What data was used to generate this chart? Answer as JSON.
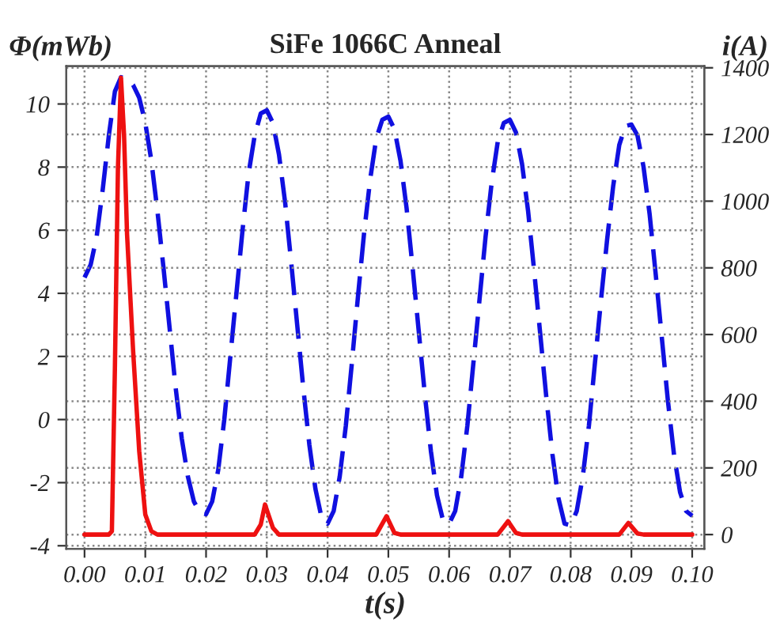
{
  "chart_data": {
    "type": "line",
    "title": "SiFe 1066C Anneal",
    "xlabel": "t(s)",
    "ylabel": "Φ(mWb)",
    "y2label": "i(A)",
    "xlim": [
      -0.003,
      0.102
    ],
    "xticks": [
      {
        "value": 0,
        "label": "0.00"
      },
      {
        "value": 0.01,
        "label": "0.01"
      },
      {
        "value": 0.02,
        "label": "0.02"
      },
      {
        "value": 0.03,
        "label": "0.03"
      },
      {
        "value": 0.04,
        "label": "0.04"
      },
      {
        "value": 0.05,
        "label": "0.05"
      },
      {
        "value": 0.06,
        "label": "0.06"
      },
      {
        "value": 0.07,
        "label": "0.07"
      },
      {
        "value": 0.08,
        "label": "0.08"
      },
      {
        "value": 0.09,
        "label": "0.09"
      },
      {
        "value": 0.1,
        "label": "0.10"
      }
    ],
    "ylim": [
      -4.1,
      11.2
    ],
    "yticks": [
      -4,
      -2,
      0,
      2,
      4,
      6,
      8,
      10
    ],
    "y2lim": [
      -43,
      1405
    ],
    "y2ticks": [
      0,
      200,
      400,
      600,
      800,
      1000,
      1200,
      1400
    ],
    "grid": true,
    "legend": false,
    "series": [
      {
        "color": "#1010e0",
        "line_style": "dashed",
        "x": [
          0.0,
          0.001,
          0.002,
          0.003,
          0.004,
          0.005,
          0.006,
          0.007,
          0.008,
          0.009,
          0.01,
          0.011,
          0.012,
          0.013,
          0.014,
          0.015,
          0.016,
          0.017,
          0.018,
          0.019,
          0.02,
          0.021,
          0.022,
          0.023,
          0.024,
          0.025,
          0.026,
          0.027,
          0.028,
          0.029,
          0.03,
          0.031,
          0.032,
          0.033,
          0.034,
          0.035,
          0.036,
          0.037,
          0.038,
          0.039,
          0.04,
          0.041,
          0.042,
          0.043,
          0.044,
          0.045,
          0.046,
          0.047,
          0.048,
          0.049,
          0.05,
          0.051,
          0.052,
          0.053,
          0.054,
          0.055,
          0.056,
          0.057,
          0.058,
          0.059,
          0.06,
          0.061,
          0.062,
          0.063,
          0.064,
          0.065,
          0.066,
          0.067,
          0.068,
          0.069,
          0.07,
          0.071,
          0.072,
          0.073,
          0.074,
          0.075,
          0.076,
          0.077,
          0.078,
          0.079,
          0.08,
          0.081,
          0.082,
          0.083,
          0.084,
          0.085,
          0.086,
          0.087,
          0.088,
          0.089,
          0.09,
          0.091,
          0.092,
          0.093,
          0.094,
          0.095,
          0.096,
          0.097,
          0.098,
          0.099,
          0.1
        ],
        "values": [
          4.5,
          4.9,
          5.8,
          7.3,
          9.0,
          10.4,
          10.85,
          10.8,
          10.6,
          10.2,
          9.4,
          8.2,
          6.6,
          4.8,
          2.9,
          1.0,
          -0.6,
          -1.8,
          -2.6,
          -2.95,
          -3.0,
          -2.6,
          -1.6,
          0.0,
          2.0,
          4.0,
          6.0,
          7.8,
          9.0,
          9.7,
          9.8,
          9.4,
          8.4,
          6.9,
          5.0,
          3.0,
          1.0,
          -0.8,
          -2.2,
          -3.1,
          -3.3,
          -2.9,
          -1.8,
          -0.2,
          1.8,
          3.9,
          5.9,
          7.6,
          8.9,
          9.5,
          9.6,
          9.2,
          8.2,
          6.7,
          4.8,
          2.8,
          0.8,
          -1.0,
          -2.4,
          -3.2,
          -3.3,
          -2.9,
          -1.8,
          -0.2,
          1.8,
          3.8,
          5.8,
          7.5,
          8.8,
          9.4,
          9.5,
          9.1,
          8.1,
          6.6,
          4.7,
          2.7,
          0.7,
          -1.1,
          -2.5,
          -3.3,
          -3.35,
          -2.9,
          -1.8,
          -0.2,
          1.8,
          3.8,
          5.7,
          7.4,
          8.7,
          9.3,
          9.35,
          9.0,
          8.0,
          6.5,
          4.6,
          2.6,
          0.6,
          -1.1,
          -2.3,
          -2.9,
          -3.05
        ]
      },
      {
        "color": "#ee1111",
        "line_style": "solid",
        "axis": "y2",
        "x": [
          0,
          0.004,
          0.0045,
          0.005,
          0.0055,
          0.006,
          0.0065,
          0.007,
          0.008,
          0.009,
          0.01,
          0.011,
          0.012,
          0.028,
          0.029,
          0.0297,
          0.031,
          0.032,
          0.048,
          0.0497,
          0.051,
          0.052,
          0.068,
          0.0697,
          0.071,
          0.072,
          0.088,
          0.0895,
          0.091,
          0.092,
          0.1
        ],
        "values": [
          0,
          0,
          10,
          500,
          1100,
          1370,
          1200,
          900,
          550,
          250,
          60,
          10,
          0,
          0,
          30,
          90,
          20,
          0,
          0,
          55,
          5,
          0,
          0,
          40,
          5,
          0,
          0,
          35,
          3,
          0,
          0
        ]
      }
    ]
  }
}
